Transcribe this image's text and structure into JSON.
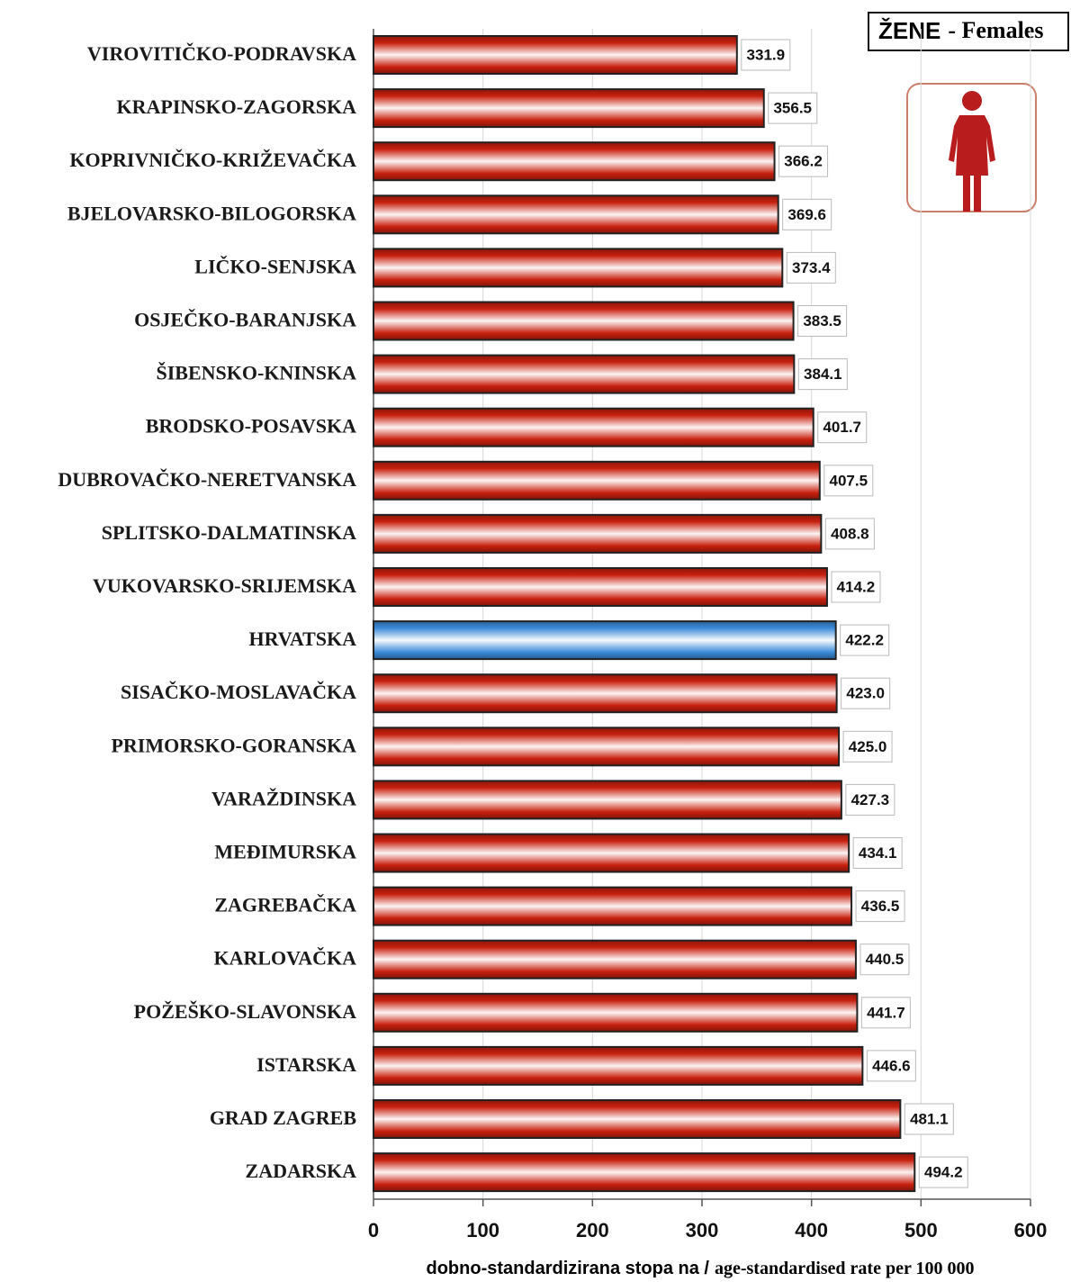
{
  "chart_data": {
    "type": "barh",
    "title": "ŽENE",
    "title_suffix": "- Females",
    "xlabel": [
      "dobno-standardizirana stopa na /",
      "age-standardised rate per 100 000"
    ],
    "categories": [
      "VIROVITIČKO-PODRAVSKA",
      "KRAPINSKO-ZAGORSKA",
      "KOPRIVNIČKO-KRIŽEVAČKA",
      "BJELOVARSKO-BILOGORSKA",
      "LIČKO-SENJSKA",
      "OSJEČKO-BARANJSKA",
      "ŠIBENSKO-KNINSKA",
      "BRODSKO-POSAVSKA",
      "DUBROVAČKO-NERETVANSKA",
      "SPLITSKO-DALMATINSKA",
      "VUKOVARSKO-SRIJEMSKA",
      "HRVATSKA",
      "SISAČKO-MOSLAVAČKA",
      "PRIMORSKO-GORANSKA",
      "VARAŽDINSKA",
      "MEĐIMURSKA",
      "ZAGREBAČKA",
      "KARLOVAČKA",
      "POŽEŠKO-SLAVONSKA",
      "ISTARSKA",
      "GRAD ZAGREB",
      "ZADARSKA"
    ],
    "values": [
      331.9,
      356.5,
      366.2,
      369.6,
      373.4,
      383.5,
      384.1,
      401.7,
      407.5,
      408.8,
      414.2,
      422.2,
      423.0,
      425.0,
      427.3,
      434.1,
      436.5,
      440.5,
      441.7,
      446.6,
      481.1,
      494.2
    ],
    "value_labels": [
      "331.9",
      "356.5",
      "366.2",
      "369.6",
      "373.4",
      "383.5",
      "384.1",
      "401.7",
      "407.5",
      "408.8",
      "414.2",
      "422.2",
      "423.0",
      "425.0",
      "427.3",
      "434.1",
      "436.5",
      "440.5",
      "441.7",
      "446.6",
      "481.1",
      "494.2"
    ],
    "colors": [
      "#c8200e",
      "#c8200e",
      "#c8200e",
      "#c8200e",
      "#c8200e",
      "#c8200e",
      "#c8200e",
      "#c8200e",
      "#c8200e",
      "#c8200e",
      "#c8200e",
      "#3a8ad8",
      "#c8200e",
      "#c8200e",
      "#c8200e",
      "#c8200e",
      "#c8200e",
      "#c8200e",
      "#c8200e",
      "#c8200e",
      "#c8200e",
      "#c8200e"
    ],
    "xlim": [
      0,
      600
    ],
    "xticks": [
      0,
      100,
      200,
      300,
      400,
      500,
      600
    ],
    "grid": true
  }
}
